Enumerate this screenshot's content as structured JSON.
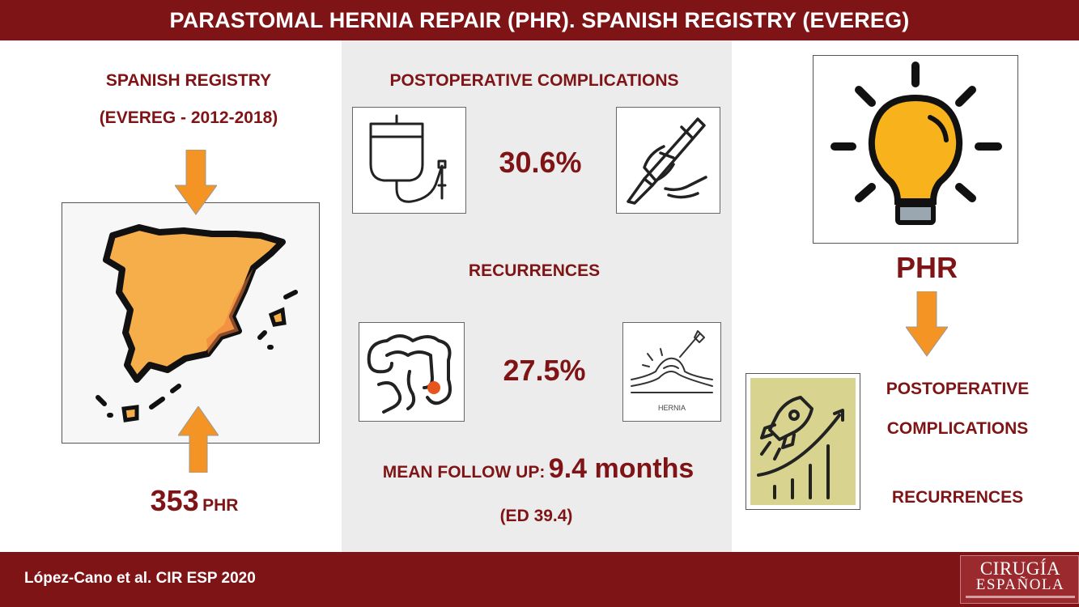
{
  "header": {
    "title": "PARASTOMAL HERNIA REPAIR (PHR). SPANISH REGISTRY (EVEREG)"
  },
  "left": {
    "registry_line1": "SPANISH REGISTRY",
    "registry_line2": "(EVEREG - 2012-2018)",
    "count_number": "353",
    "count_unit": "PHR"
  },
  "middle": {
    "complications_heading": "POSTOPERATIVE COMPLICATIONS",
    "complications_value": "30.6%",
    "recurrences_heading": "RECURRENCES",
    "recurrences_value": "27.5%",
    "followup_label": "MEAN FOLLOW UP:",
    "followup_value": "9.4 months",
    "followup_sd": "(ED 39.4)",
    "hernia_icon_caption": "HERNIA"
  },
  "right": {
    "phr_label": "PHR",
    "outcome_line1": "POSTOPERATIVE",
    "outcome_line2": "COMPLICATIONS",
    "outcome_line3": "RECURRENCES"
  },
  "footer": {
    "citation": "López-Cano et al. CIR ESP 2020",
    "logo_line1": "CIRUGÍA",
    "logo_line2": "ESPAÑOLA"
  },
  "colors": {
    "brand": "#7f1416",
    "arrow": "#f39424",
    "map_fill": "#f5ae4a",
    "bulb": "#f7b21c",
    "panel": "#ececec"
  },
  "icons": [
    "iv-drip-icon",
    "scalpel-hand-icon",
    "intestine-icon",
    "hernia-icon",
    "lightbulb-icon",
    "rocket-growth-icon",
    "spain-map-icon",
    "arrow-down-icon"
  ]
}
